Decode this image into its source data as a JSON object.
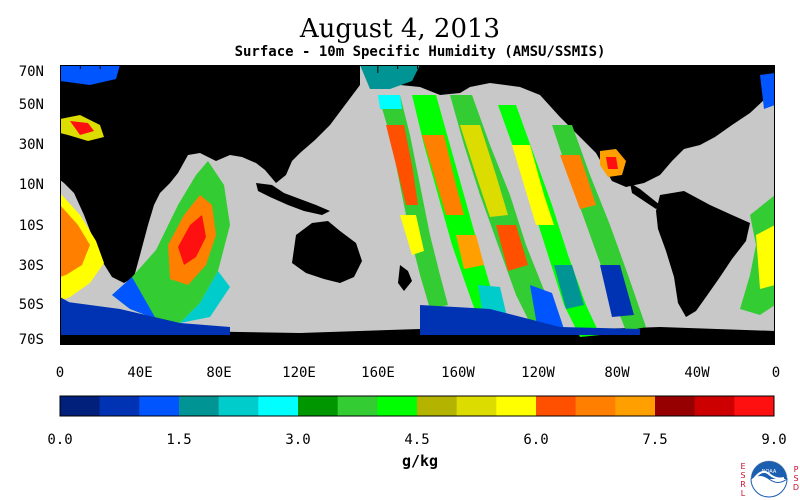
{
  "header": {
    "title": "August 4, 2013",
    "subtitle": "Surface - 10m Specific Humidity (AMSU/SSMIS)"
  },
  "map": {
    "latitude_labels": [
      "70N",
      "50N",
      "30N",
      "10N",
      "10S",
      "30S",
      "50S",
      "70S"
    ],
    "longitude_labels": [
      "0",
      "40E",
      "80E",
      "120E",
      "160E",
      "160W",
      "120W",
      "80W",
      "40W",
      "0"
    ],
    "colors": {
      "land": "#000000",
      "no_data": "#c8c8c8",
      "background": "#ffffff"
    }
  },
  "colorbar": {
    "colors": [
      "#00207c",
      "#0033b4",
      "#0055ff",
      "#009494",
      "#00cccc",
      "#00ffff",
      "#009600",
      "#33cc33",
      "#00ff00",
      "#b4b400",
      "#dcdc00",
      "#ffff00",
      "#ff5000",
      "#ff8000",
      "#ffa000",
      "#960000",
      "#cc0000",
      "#ff1010"
    ],
    "tick_labels": [
      "0.0",
      "1.5",
      "3.0",
      "4.5",
      "6.0",
      "7.5",
      "9.0"
    ],
    "units": "g/kg"
  },
  "logo": {
    "left_text": "ESRL",
    "right_text": "PSD",
    "center_text": "NOAA"
  }
}
